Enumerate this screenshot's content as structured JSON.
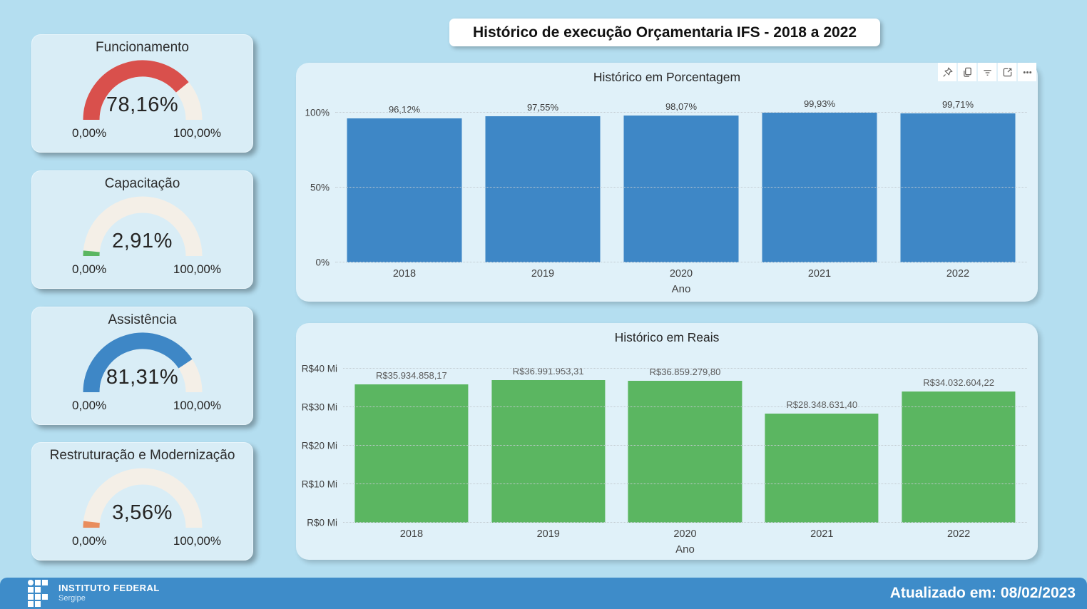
{
  "page": {
    "title": "Histórico de execução Orçamentaria IFS - 2018 a 2022"
  },
  "colors": {
    "page_bg": "#b4def0",
    "card_bg": "#d9edf6",
    "panel_bg": "#e0f1f9",
    "gauge_track": "#f4efe7",
    "bar_blue": "#3e87c6",
    "bar_green": "#5bb661",
    "footer_bg": "#3e8cc9"
  },
  "gauges": [
    {
      "title": "Funcionamento",
      "value": 78.16,
      "value_label": "78,16%",
      "min_label": "0,00%",
      "max_label": "100,00%",
      "color": "#d9504c"
    },
    {
      "title": "Capacitação",
      "value": 2.91,
      "value_label": "2,91%",
      "min_label": "0,00%",
      "max_label": "100,00%",
      "color": "#5bb661"
    },
    {
      "title": "Assistência",
      "value": 81.31,
      "value_label": "81,31%",
      "min_label": "0,00%",
      "max_label": "100,00%",
      "color": "#3e87c6"
    },
    {
      "title": "Restruturação e Modernização",
      "value": 3.56,
      "value_label": "3,56%",
      "min_label": "0,00%",
      "max_label": "100,00%",
      "color": "#e98d5d"
    }
  ],
  "visual_header": {
    "icons": [
      "pin-icon",
      "copy-icon",
      "filter-icon",
      "focus-mode-icon",
      "more-options-icon"
    ]
  },
  "chart_data": [
    {
      "type": "bar",
      "title": "Histórico em Porcentagem",
      "categories": [
        "2018",
        "2019",
        "2020",
        "2021",
        "2022"
      ],
      "values": [
        96.12,
        97.55,
        98.07,
        99.93,
        99.71
      ],
      "labels": [
        "96,12%",
        "97,55%",
        "98,07%",
        "99,93%",
        "99,71%"
      ],
      "xlabel": "Ano",
      "ylabel": "",
      "ylim": [
        0,
        100
      ],
      "yticks": [
        {
          "v": 0,
          "label": "0%"
        },
        {
          "v": 50,
          "label": "50%"
        },
        {
          "v": 100,
          "label": "100%"
        }
      ],
      "grid": "dotted",
      "legend": "none",
      "bar_color": "#3e87c6",
      "label_color": "#3d3d3d"
    },
    {
      "type": "bar",
      "title": "Histórico em Reais",
      "categories": [
        "2018",
        "2019",
        "2020",
        "2021",
        "2022"
      ],
      "values": [
        35934858.17,
        36991953.31,
        36859279.8,
        28348631.4,
        34032604.22
      ],
      "labels": [
        "R$35.934.858,17",
        "R$36.991.953,31",
        "R$36.859.279,80",
        "R$28.348.631,40",
        "R$34.032.604,22"
      ],
      "xlabel": "Ano",
      "ylabel": "",
      "ylim": [
        0,
        40000000
      ],
      "yticks": [
        {
          "v": 0,
          "label": "R$0 Mi"
        },
        {
          "v": 10000000,
          "label": "R$10 Mi"
        },
        {
          "v": 20000000,
          "label": "R$20 Mi"
        },
        {
          "v": 30000000,
          "label": "R$30 Mi"
        },
        {
          "v": 40000000,
          "label": "R$40 Mi"
        }
      ],
      "grid": "dotted",
      "legend": "none",
      "bar_color": "#5bb661",
      "label_color": "#595959"
    }
  ],
  "footer": {
    "logo_title": "INSTITUTO FEDERAL",
    "logo_subtitle": "Sergipe",
    "updated_text": "Atualizado em: 08/02/2023"
  }
}
